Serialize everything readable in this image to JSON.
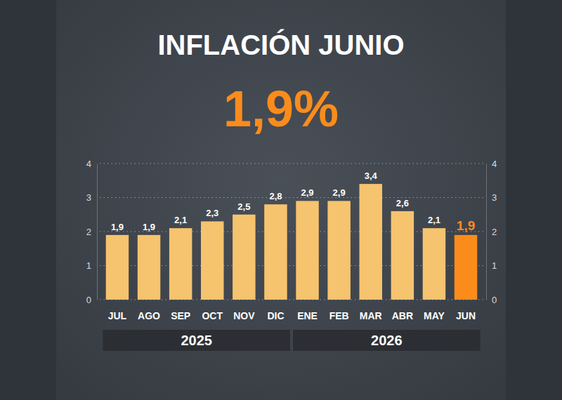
{
  "chart_data": {
    "type": "bar",
    "title": "INFLACIÓN JUNIO",
    "subtitle": "1,9%",
    "categories": [
      "JUL",
      "AGO",
      "SEP",
      "OCT",
      "NOV",
      "DIC",
      "ENE",
      "FEB",
      "MAR",
      "ABR",
      "MAY",
      "JUN"
    ],
    "values": [
      1.9,
      1.9,
      2.1,
      2.3,
      2.5,
      2.8,
      2.9,
      2.9,
      3.4,
      2.6,
      2.1,
      1.9
    ],
    "value_labels": [
      "1,9",
      "1,9",
      "2,1",
      "2,3",
      "2,5",
      "2,8",
      "2,9",
      "2,9",
      "3,4",
      "2,6",
      "2,1",
      "1,9"
    ],
    "colors": [
      "#f6c36e",
      "#f6c36e",
      "#f6c36e",
      "#f6c36e",
      "#f6c36e",
      "#f6c36e",
      "#f6c36e",
      "#f6c36e",
      "#f6c36e",
      "#f6c36e",
      "#f6c36e",
      "#fb8c1c"
    ],
    "groups": [
      {
        "label": "2025",
        "count": 6
      },
      {
        "label": "2026",
        "count": 6
      }
    ],
    "ylim": [
      0,
      4
    ],
    "yticks": [
      0,
      1,
      2,
      3,
      4
    ],
    "y2lim": [
      0,
      4
    ],
    "y2ticks": [
      0,
      1,
      2,
      3,
      4
    ],
    "grid": true,
    "data_labels": true
  }
}
